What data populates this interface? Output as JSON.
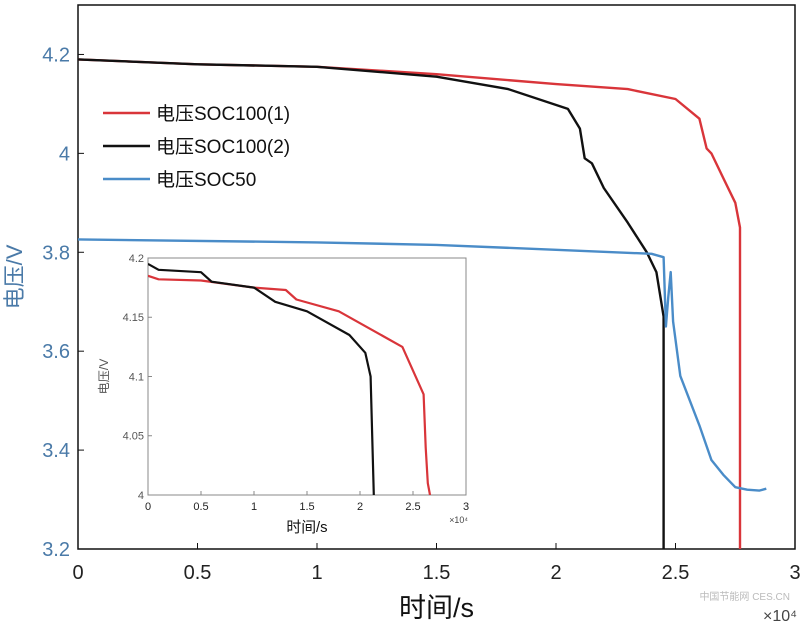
{
  "chart_data": [
    {
      "type": "line",
      "xlabel": "时间/s",
      "ylabel": "电压/V",
      "x_multiplier": "×10⁴",
      "xlim": [
        0,
        3
      ],
      "ylim": [
        3.2,
        4.3
      ],
      "xticks": [
        "0",
        "0.5",
        "1",
        "1.5",
        "2",
        "2.5",
        "3"
      ],
      "yticks": [
        "3.2",
        "3.4",
        "3.6",
        "3.8",
        "4",
        "4.2"
      ],
      "legend": "upper-left",
      "series": [
        {
          "name": "电压SOC100(1)",
          "color": "#d9353a",
          "x": [
            0,
            0.5,
            1,
            1.5,
            2,
            2.3,
            2.5,
            2.6,
            2.63,
            2.65,
            2.7,
            2.75,
            2.77,
            2.77
          ],
          "y": [
            4.19,
            4.18,
            4.175,
            4.16,
            4.14,
            4.13,
            4.11,
            4.07,
            4.01,
            4.0,
            3.95,
            3.9,
            3.85,
            3.2
          ]
        },
        {
          "name": "电压SOC100(2)",
          "color": "#111111",
          "x": [
            0,
            0.5,
            1,
            1.5,
            1.8,
            2.05,
            2.1,
            2.12,
            2.15,
            2.2,
            2.3,
            2.38,
            2.42,
            2.44,
            2.45,
            2.45
          ],
          "y": [
            4.19,
            4.18,
            4.175,
            4.155,
            4.13,
            4.09,
            4.05,
            3.99,
            3.98,
            3.93,
            3.86,
            3.8,
            3.76,
            3.7,
            3.67,
            3.2
          ]
        },
        {
          "name": "电压SOC50",
          "color": "#4a8cc8",
          "x": [
            0,
            1,
            1.5,
            2,
            2.4,
            2.45,
            2.46,
            2.47,
            2.48,
            2.49,
            2.52,
            2.6,
            2.65,
            2.7,
            2.75,
            2.8,
            2.85,
            2.88
          ],
          "y": [
            3.826,
            3.82,
            3.815,
            3.805,
            3.797,
            3.79,
            3.65,
            3.71,
            3.76,
            3.66,
            3.55,
            3.45,
            3.38,
            3.35,
            3.325,
            3.32,
            3.318,
            3.322
          ]
        }
      ]
    },
    {
      "type": "line",
      "xlabel": "时间/s",
      "ylabel": "电压/V",
      "x_multiplier": "×10⁴",
      "xlim": [
        0,
        3
      ],
      "ylim": [
        4,
        4.2
      ],
      "xticks": [
        "0",
        "0.5",
        "1",
        "1.5",
        "2",
        "2.5",
        "3"
      ],
      "yticks": [
        "4",
        "4.05",
        "4.1",
        "4.15",
        "4.2"
      ],
      "series": [
        {
          "color": "#d9353a",
          "x": [
            0,
            0.1,
            0.5,
            1,
            1.3,
            1.4,
            1.8,
            2,
            2.4,
            2.6,
            2.62,
            2.64,
            2.66
          ],
          "y": [
            4.185,
            4.182,
            4.181,
            4.175,
            4.173,
            4.165,
            4.155,
            4.145,
            4.125,
            4.085,
            4.04,
            4.01,
            4.0
          ]
        },
        {
          "color": "#111111",
          "x": [
            0,
            0.1,
            0.5,
            0.6,
            1,
            1.2,
            1.5,
            1.9,
            2.05,
            2.1,
            2.13
          ],
          "y": [
            4.195,
            4.19,
            4.188,
            4.18,
            4.175,
            4.163,
            4.155,
            4.135,
            4.12,
            4.1,
            4.0
          ]
        }
      ]
    }
  ],
  "watermark": "中国节能网 CES.CN"
}
